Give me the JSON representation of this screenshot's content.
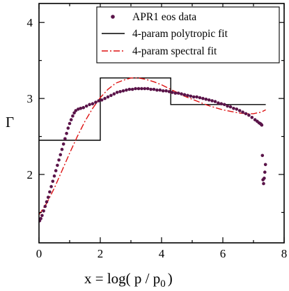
{
  "chart_data": {
    "type": "line",
    "title": "",
    "xlabel": "x = log( p / p",
    "xlabel_sub": "0",
    "xlabel_close": ")",
    "ylabel": "Γ",
    "xlim": [
      0,
      8
    ],
    "ylim": [
      1.1,
      4.25
    ],
    "x_ticks": [
      0,
      2,
      4,
      6,
      8
    ],
    "y_ticks": [
      2,
      3,
      4
    ],
    "x_tick_labels": [
      "0",
      "2",
      "4",
      "6",
      "8"
    ],
    "y_tick_labels": [
      "2",
      "3",
      "4"
    ],
    "legend_position": "top-right",
    "colors": {
      "data": "#5a1449",
      "polytropic": "#000000",
      "spectral": "#dd1111"
    },
    "series": [
      {
        "name": "APR1 eos data",
        "style": "scatter",
        "points": [
          [
            0.02,
            1.39
          ],
          [
            0.06,
            1.42
          ],
          [
            0.1,
            1.46
          ],
          [
            0.15,
            1.52
          ],
          [
            0.2,
            1.58
          ],
          [
            0.25,
            1.64
          ],
          [
            0.3,
            1.7
          ],
          [
            0.35,
            1.77
          ],
          [
            0.4,
            1.84
          ],
          [
            0.45,
            1.91
          ],
          [
            0.5,
            1.98
          ],
          [
            0.55,
            2.05
          ],
          [
            0.6,
            2.12
          ],
          [
            0.65,
            2.19
          ],
          [
            0.7,
            2.26
          ],
          [
            0.75,
            2.33
          ],
          [
            0.8,
            2.4
          ],
          [
            0.85,
            2.47
          ],
          [
            0.9,
            2.54
          ],
          [
            0.95,
            2.61
          ],
          [
            1.0,
            2.67
          ],
          [
            1.05,
            2.72
          ],
          [
            1.1,
            2.77
          ],
          [
            1.15,
            2.81
          ],
          [
            1.2,
            2.84
          ],
          [
            1.28,
            2.86
          ],
          [
            1.36,
            2.87
          ],
          [
            1.45,
            2.88
          ],
          [
            1.55,
            2.9
          ],
          [
            1.65,
            2.92
          ],
          [
            1.75,
            2.93
          ],
          [
            1.85,
            2.95
          ],
          [
            1.95,
            2.97
          ],
          [
            2.05,
            2.98
          ],
          [
            2.15,
            3.0
          ],
          [
            2.25,
            3.02
          ],
          [
            2.35,
            3.04
          ],
          [
            2.45,
            3.06
          ],
          [
            2.55,
            3.08
          ],
          [
            2.65,
            3.09
          ],
          [
            2.75,
            3.1
          ],
          [
            2.85,
            3.11
          ],
          [
            2.95,
            3.12
          ],
          [
            3.05,
            3.12
          ],
          [
            3.15,
            3.13
          ],
          [
            3.25,
            3.13
          ],
          [
            3.35,
            3.13
          ],
          [
            3.45,
            3.13
          ],
          [
            3.55,
            3.13
          ],
          [
            3.65,
            3.12
          ],
          [
            3.75,
            3.12
          ],
          [
            3.85,
            3.11
          ],
          [
            3.95,
            3.11
          ],
          [
            4.05,
            3.1
          ],
          [
            4.15,
            3.1
          ],
          [
            4.25,
            3.09
          ],
          [
            4.35,
            3.08
          ],
          [
            4.45,
            3.07
          ],
          [
            4.55,
            3.07
          ],
          [
            4.65,
            3.06
          ],
          [
            4.75,
            3.05
          ],
          [
            4.85,
            3.04
          ],
          [
            4.95,
            3.03
          ],
          [
            5.05,
            3.02
          ],
          [
            5.15,
            3.02
          ],
          [
            5.25,
            3.01
          ],
          [
            5.35,
            3.0
          ],
          [
            5.45,
            2.99
          ],
          [
            5.55,
            2.98
          ],
          [
            5.65,
            2.97
          ],
          [
            5.75,
            2.96
          ],
          [
            5.85,
            2.94
          ],
          [
            5.95,
            2.93
          ],
          [
            6.05,
            2.92
          ],
          [
            6.15,
            2.9
          ],
          [
            6.25,
            2.89
          ],
          [
            6.35,
            2.87
          ],
          [
            6.45,
            2.86
          ],
          [
            6.55,
            2.84
          ],
          [
            6.65,
            2.82
          ],
          [
            6.75,
            2.8
          ],
          [
            6.85,
            2.78
          ],
          [
            6.95,
            2.75
          ],
          [
            7.05,
            2.72
          ],
          [
            7.12,
            2.7
          ],
          [
            7.18,
            2.68
          ],
          [
            7.22,
            2.67
          ],
          [
            7.25,
            2.66
          ],
          [
            7.27,
            2.65
          ],
          [
            7.29,
            2.25
          ],
          [
            7.31,
            1.93
          ],
          [
            7.33,
            1.88
          ],
          [
            7.35,
            1.95
          ],
          [
            7.37,
            2.03
          ],
          [
            7.39,
            2.13
          ]
        ]
      },
      {
        "name": "4-param polytropic fit",
        "style": "solid",
        "points": [
          [
            0,
            2.45
          ],
          [
            2.0,
            2.45
          ],
          [
            2.0,
            3.27
          ],
          [
            4.3,
            3.27
          ],
          [
            4.3,
            2.92
          ],
          [
            7.4,
            2.92
          ]
        ]
      },
      {
        "name": "4-param spectral fit",
        "style": "dashdot",
        "points": [
          [
            0.0,
            1.47
          ],
          [
            0.25,
            1.62
          ],
          [
            0.5,
            1.82
          ],
          [
            0.75,
            2.05
          ],
          [
            1.0,
            2.28
          ],
          [
            1.25,
            2.5
          ],
          [
            1.5,
            2.7
          ],
          [
            1.75,
            2.87
          ],
          [
            2.0,
            3.01
          ],
          [
            2.25,
            3.12
          ],
          [
            2.5,
            3.2
          ],
          [
            2.75,
            3.24
          ],
          [
            3.0,
            3.27
          ],
          [
            3.25,
            3.27
          ],
          [
            3.5,
            3.25
          ],
          [
            3.75,
            3.22
          ],
          [
            4.0,
            3.18
          ],
          [
            4.25,
            3.13
          ],
          [
            4.5,
            3.08
          ],
          [
            4.75,
            3.03
          ],
          [
            5.0,
            2.99
          ],
          [
            5.25,
            2.95
          ],
          [
            5.5,
            2.91
          ],
          [
            5.75,
            2.88
          ],
          [
            6.0,
            2.85
          ],
          [
            6.25,
            2.83
          ],
          [
            6.5,
            2.81
          ],
          [
            6.75,
            2.8
          ],
          [
            7.0,
            2.8
          ],
          [
            7.25,
            2.82
          ],
          [
            7.4,
            2.85
          ]
        ]
      }
    ]
  }
}
